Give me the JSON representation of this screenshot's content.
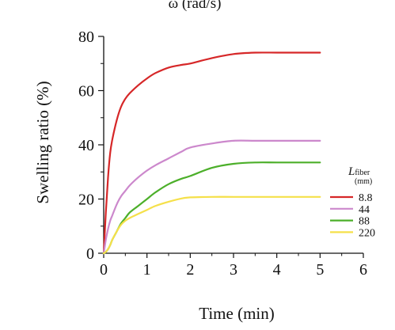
{
  "chart_data": {
    "type": "line",
    "top_label": "ω (rad/s)",
    "xlabel": "Time (min)",
    "ylabel": "Swelling ratio (%)",
    "xlim": [
      0,
      6
    ],
    "ylim": [
      0,
      80
    ],
    "xticks": [
      0,
      1,
      2,
      3,
      4,
      5,
      6
    ],
    "yticks": [
      0,
      20,
      40,
      60,
      80
    ],
    "grid": false,
    "legend": {
      "placement": "right",
      "title_main": "L",
      "title_sub": "fiber",
      "title_unit": "(mm)"
    },
    "series": [
      {
        "name": "8.8",
        "color": "#d62728",
        "x": [
          0,
          0.05,
          0.1,
          0.15,
          0.2,
          0.3,
          0.4,
          0.5,
          0.6,
          0.8,
          1.0,
          1.2,
          1.5,
          1.8,
          2.0,
          2.5,
          3.0,
          3.5,
          4.0,
          4.5,
          5.0
        ],
        "y": [
          0,
          15,
          28,
          37,
          42,
          49,
          54,
          57,
          59,
          62,
          64.5,
          66.5,
          68.5,
          69.5,
          70,
          72,
          73.5,
          74,
          74,
          74,
          74
        ]
      },
      {
        "name": "44",
        "color": "#cc88cc",
        "x": [
          0,
          0.05,
          0.1,
          0.15,
          0.2,
          0.3,
          0.4,
          0.5,
          0.6,
          0.8,
          1.0,
          1.2,
          1.5,
          1.8,
          2.0,
          2.5,
          3.0,
          3.5,
          4.0,
          4.5,
          5.0
        ],
        "y": [
          0,
          5,
          9,
          12,
          14,
          18,
          21,
          23,
          25,
          28,
          30.5,
          32.5,
          35,
          37.5,
          39,
          40.5,
          41.5,
          41.5,
          41.5,
          41.5,
          41.5
        ]
      },
      {
        "name": "88",
        "color": "#4caf2a",
        "x": [
          0,
          0.05,
          0.1,
          0.15,
          0.2,
          0.3,
          0.4,
          0.5,
          0.6,
          0.8,
          1.0,
          1.2,
          1.5,
          1.8,
          2.0,
          2.5,
          3.0,
          3.5,
          4.0,
          4.5,
          5.0
        ],
        "y": [
          0,
          0.5,
          1.5,
          3,
          5,
          8,
          11,
          13,
          15,
          17.5,
          20,
          22.5,
          25.5,
          27.5,
          28.5,
          31.5,
          33,
          33.5,
          33.5,
          33.5,
          33.5
        ]
      },
      {
        "name": "220",
        "color": "#f5e04a",
        "x": [
          0,
          0.05,
          0.1,
          0.15,
          0.2,
          0.3,
          0.4,
          0.5,
          0.6,
          0.8,
          1.0,
          1.2,
          1.5,
          1.8,
          2.0,
          2.5,
          3.0,
          3.5,
          4.0,
          4.5,
          5.0
        ],
        "y": [
          0,
          0.5,
          1.5,
          3,
          5,
          8,
          10.5,
          12,
          13,
          14.5,
          16,
          17.5,
          19,
          20.2,
          20.6,
          20.8,
          20.8,
          20.8,
          20.8,
          20.8,
          20.8
        ]
      }
    ]
  }
}
